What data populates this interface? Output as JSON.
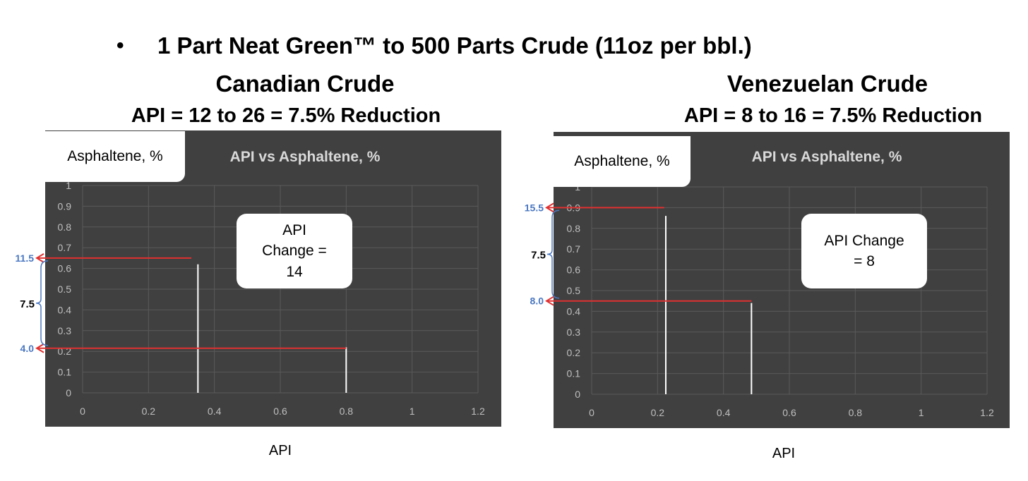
{
  "headline": {
    "bullet": "•",
    "text": "1 Part Neat Green™ to 500 Parts Crude (11oz per bbl.)"
  },
  "panels": [
    {
      "title": "Canadian Crude",
      "subtitle": "API = 12 to 26 = 7.5% Reduction",
      "ylabel": "Asphaltene, %",
      "xlabel": "API",
      "callout": "API\nChange =\n14"
    },
    {
      "title": "Venezuelan Crude",
      "subtitle": "API = 8 to 16 = 7.5% Reduction",
      "ylabel": "Asphaltene, %",
      "xlabel": "API",
      "callout": "API Change\n= 8"
    }
  ],
  "colors": {
    "plot_bg": "#404040",
    "grid": "#5a5a5a",
    "axis_text": "#bfbfbf",
    "marker_line": "#e03030",
    "vertical_line": "#ffffff",
    "side_label": "#4a78c2",
    "brace": "#4a78c2"
  },
  "chart_data": [
    {
      "type": "line",
      "title": "API vs Asphaltene, %",
      "xlabel": "API",
      "ylabel": "Asphaltene, %",
      "xlim": [
        0,
        1.2
      ],
      "ylim": [
        0,
        1
      ],
      "x_ticks": [
        "0",
        "0.2",
        "0.4",
        "0.6",
        "0.8",
        "1",
        "1.2"
      ],
      "y_ticks": [
        "0",
        "0.1",
        "0.2",
        "0.3",
        "0.4",
        "0.5",
        "0.6",
        "0.7",
        "0.8",
        "0.9",
        "1"
      ],
      "grid": true,
      "vertical_lines": [
        {
          "x": 0.35,
          "y": 0.62
        },
        {
          "x": 0.8,
          "y": 0.22
        }
      ],
      "reference_lines": [
        {
          "y": 0.65,
          "x_end": 0.33,
          "label": "11.5"
        },
        {
          "y": 0.215,
          "x_end": 0.8,
          "label": "4.0"
        }
      ],
      "difference_label": "7.5"
    },
    {
      "type": "line",
      "title": "API vs Asphaltene, %",
      "xlabel": "API",
      "ylabel": "Asphaltene, %",
      "xlim": [
        0,
        1.2
      ],
      "ylim": [
        0,
        1
      ],
      "x_ticks": [
        "0",
        "0.2",
        "0.4",
        "0.6",
        "0.8",
        "1",
        "1.2"
      ],
      "y_ticks": [
        "0",
        "0.1",
        "0.2",
        "0.3",
        "0.4",
        "0.5",
        "0.6",
        "0.7",
        "0.8",
        "0.9",
        "1"
      ],
      "grid": true,
      "vertical_lines": [
        {
          "x": 0.225,
          "y": 0.86
        },
        {
          "x": 0.485,
          "y": 0.44
        }
      ],
      "reference_lines": [
        {
          "y": 0.9,
          "x_end": 0.22,
          "label": "15.5"
        },
        {
          "y": 0.45,
          "x_end": 0.485,
          "label": "8.0"
        }
      ],
      "difference_label": "7.5"
    }
  ]
}
